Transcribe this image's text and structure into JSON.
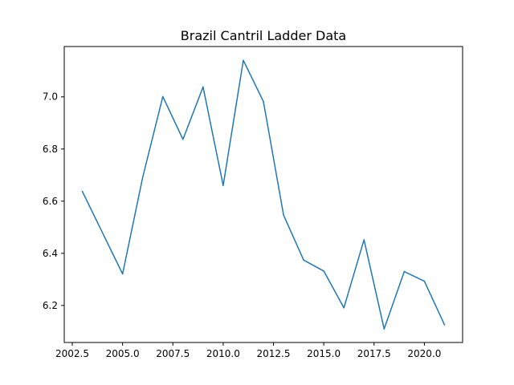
{
  "chart_data": {
    "type": "line",
    "title": "Brazil Cantril Ladder Data",
    "xlabel": "",
    "ylabel": "",
    "xlim": [
      2002.1,
      2021.9
    ],
    "ylim": [
      6.058,
      7.193
    ],
    "grid": false,
    "legend": "none",
    "x_ticks": [
      2002.5,
      2005.0,
      2007.5,
      2010.0,
      2012.5,
      2015.0,
      2017.5,
      2020.0
    ],
    "x_tick_labels": [
      "2002.5",
      "2005.0",
      "2007.5",
      "2010.0",
      "2012.5",
      "2015.0",
      "2017.5",
      "2020.0"
    ],
    "y_ticks": [
      6.2,
      6.4,
      6.6,
      6.8,
      7.0
    ],
    "y_tick_labels": [
      "6.2",
      "6.4",
      "6.6",
      "6.8",
      "7.0"
    ],
    "series": [
      {
        "color": "#1f77b4",
        "x": [
          2003,
          2005,
          2006,
          2007,
          2008,
          2009,
          2010,
          2011,
          2012,
          2013,
          2014,
          2015,
          2016,
          2017,
          2018,
          2019,
          2020,
          2021
        ],
        "y": [
          6.637,
          6.321,
          6.692,
          7.001,
          6.837,
          7.038,
          6.66,
          7.14,
          6.982,
          6.547,
          6.374,
          6.332,
          6.191,
          6.452,
          6.11,
          6.33,
          6.293,
          6.126
        ]
      }
    ]
  }
}
